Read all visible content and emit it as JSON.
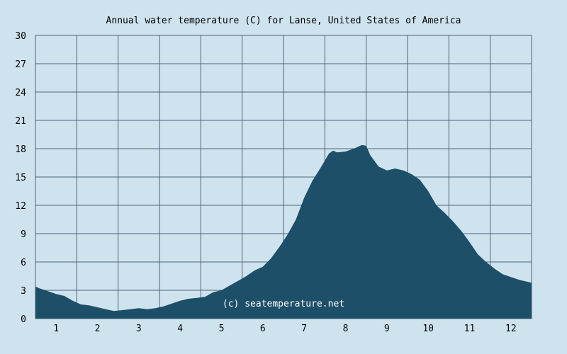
{
  "chart_data": {
    "type": "area",
    "title": "Annual water temperature (C) for Lanse, United States of America",
    "watermark": "(c) seatemperature.net",
    "xlabel": "",
    "ylabel": "",
    "x_ticks": [
      "1",
      "2",
      "3",
      "4",
      "5",
      "6",
      "7",
      "8",
      "9",
      "10",
      "11",
      "12"
    ],
    "y_ticks": [
      "0",
      "3",
      "6",
      "9",
      "12",
      "15",
      "18",
      "21",
      "24",
      "27",
      "30"
    ],
    "xlim": [
      0.5,
      12.5
    ],
    "ylim": [
      0,
      30
    ],
    "grid": true,
    "legend": "none",
    "colors": {
      "background": "#cfe3ef",
      "fill": "#1e4f69",
      "grid": "#4a6478"
    },
    "series": [
      {
        "x": [
          0.5,
          0.6,
          0.8,
          1.0,
          1.2,
          1.4,
          1.6,
          1.8,
          2.0,
          2.2,
          2.4,
          2.6,
          2.8,
          3.0,
          3.2,
          3.4,
          3.6,
          3.8,
          4.0,
          4.2,
          4.4,
          4.6,
          4.8,
          5.0,
          5.2,
          5.4,
          5.6,
          5.8,
          6.0,
          6.2,
          6.4,
          6.6,
          6.8,
          7.0,
          7.2,
          7.4,
          7.6,
          7.7,
          7.8,
          8.0,
          8.2,
          8.4,
          8.5,
          8.6,
          8.8,
          9.0,
          9.2,
          9.4,
          9.6,
          9.8,
          10.0,
          10.2,
          10.4,
          10.6,
          10.8,
          11.0,
          11.2,
          11.4,
          11.6,
          11.8,
          12.0,
          12.2,
          12.4,
          12.5
        ],
        "values": [
          3.4,
          3.2,
          2.9,
          2.6,
          2.4,
          1.9,
          1.5,
          1.4,
          1.2,
          1.0,
          0.8,
          0.9,
          1.0,
          1.1,
          1.0,
          1.1,
          1.3,
          1.6,
          1.9,
          2.1,
          2.2,
          2.3,
          2.8,
          3.0,
          3.5,
          4.0,
          4.5,
          5.1,
          5.5,
          6.4,
          7.6,
          8.9,
          10.5,
          12.8,
          14.6,
          16.0,
          17.5,
          17.8,
          17.6,
          17.7,
          18.0,
          18.4,
          18.3,
          17.3,
          16.1,
          15.7,
          15.9,
          15.7,
          15.3,
          14.7,
          13.5,
          12.0,
          11.2,
          10.3,
          9.3,
          8.1,
          6.8,
          6.0,
          5.3,
          4.7,
          4.4,
          4.1,
          3.9,
          3.8
        ]
      }
    ]
  }
}
